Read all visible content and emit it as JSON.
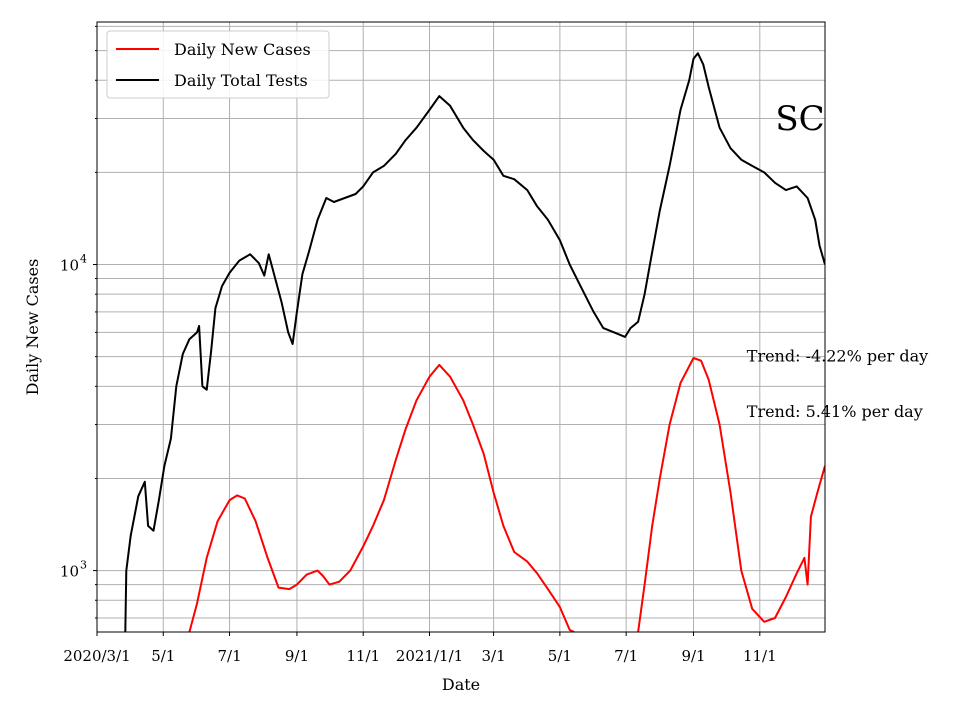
{
  "chart_data": {
    "type": "line",
    "title": "",
    "state_label": "SC",
    "xlabel": "Date",
    "ylabel": "Daily New Cases",
    "y_scale": "log",
    "ylim": [
      630,
      62000
    ],
    "xlim": [
      "2020-03-01",
      "2021-12-31"
    ],
    "grid": true,
    "legend_position": "top-left",
    "x_ticks": [
      {
        "date": "2020-03-01",
        "label": "2020/3/1"
      },
      {
        "date": "2020-05-01",
        "label": "5/1"
      },
      {
        "date": "2020-07-01",
        "label": "7/1"
      },
      {
        "date": "2020-09-01",
        "label": "9/1"
      },
      {
        "date": "2020-11-01",
        "label": "11/1"
      },
      {
        "date": "2021-01-01",
        "label": "2021/1/1"
      },
      {
        "date": "2021-03-01",
        "label": "3/1"
      },
      {
        "date": "2021-05-01",
        "label": "5/1"
      },
      {
        "date": "2021-07-01",
        "label": "7/1"
      },
      {
        "date": "2021-09-01",
        "label": "9/1"
      },
      {
        "date": "2021-11-01",
        "label": "11/1"
      }
    ],
    "y_ticks": [
      {
        "value": 1000,
        "base": "10",
        "exp": "3"
      },
      {
        "value": 10000,
        "base": "10",
        "exp": "4"
      }
    ],
    "annotations": [
      {
        "text": "Trend: -4.22% per day",
        "date": "2021-10-20",
        "value": 5000
      },
      {
        "text": "Trend: 5.41% per day",
        "date": "2021-10-20",
        "value": 3300
      }
    ],
    "series": [
      {
        "name": "Daily New Cases",
        "color": "#ff0000",
        "points": [
          [
            "2020-05-25",
            630
          ],
          [
            "2020-06-01",
            780
          ],
          [
            "2020-06-10",
            1100
          ],
          [
            "2020-06-20",
            1450
          ],
          [
            "2020-07-01",
            1700
          ],
          [
            "2020-07-08",
            1760
          ],
          [
            "2020-07-15",
            1720
          ],
          [
            "2020-07-25",
            1450
          ],
          [
            "2020-08-05",
            1100
          ],
          [
            "2020-08-15",
            880
          ],
          [
            "2020-08-25",
            870
          ],
          [
            "2020-09-01",
            900
          ],
          [
            "2020-09-10",
            970
          ],
          [
            "2020-09-20",
            1000
          ],
          [
            "2020-09-25",
            960
          ],
          [
            "2020-10-01",
            900
          ],
          [
            "2020-10-10",
            920
          ],
          [
            "2020-10-20",
            1000
          ],
          [
            "2020-11-01",
            1200
          ],
          [
            "2020-11-10",
            1400
          ],
          [
            "2020-11-20",
            1700
          ],
          [
            "2020-12-01",
            2300
          ],
          [
            "2020-12-10",
            2900
          ],
          [
            "2020-12-20",
            3600
          ],
          [
            "2021-01-01",
            4300
          ],
          [
            "2021-01-10",
            4700
          ],
          [
            "2021-01-20",
            4300
          ],
          [
            "2021-02-01",
            3600
          ],
          [
            "2021-02-10",
            3000
          ],
          [
            "2021-02-20",
            2400
          ],
          [
            "2021-03-01",
            1800
          ],
          [
            "2021-03-10",
            1400
          ],
          [
            "2021-03-20",
            1150
          ],
          [
            "2021-04-01",
            1070
          ],
          [
            "2021-04-10",
            980
          ],
          [
            "2021-04-20",
            870
          ],
          [
            "2021-05-01",
            760
          ],
          [
            "2021-05-10",
            640
          ],
          [
            "2021-05-14",
            630
          ]
        ]
      },
      {
        "name": "Daily New Cases",
        "color": "#ff0000",
        "points": [
          [
            "2021-07-12",
            630
          ],
          [
            "2021-07-18",
            900
          ],
          [
            "2021-07-25",
            1400
          ],
          [
            "2021-08-01",
            2000
          ],
          [
            "2021-08-10",
            3000
          ],
          [
            "2021-08-20",
            4100
          ],
          [
            "2021-09-01",
            4950
          ],
          [
            "2021-09-08",
            4850
          ],
          [
            "2021-09-15",
            4200
          ],
          [
            "2021-09-25",
            3000
          ],
          [
            "2021-10-05",
            1800
          ],
          [
            "2021-10-15",
            1000
          ],
          [
            "2021-10-25",
            750
          ],
          [
            "2021-11-05",
            680
          ],
          [
            "2021-11-15",
            700
          ],
          [
            "2021-11-25",
            820
          ],
          [
            "2021-12-05",
            980
          ],
          [
            "2021-12-12",
            1100
          ],
          [
            "2021-12-15",
            900
          ],
          [
            "2021-12-18",
            1500
          ],
          [
            "2021-12-24",
            1800
          ],
          [
            "2021-12-31",
            2200
          ]
        ]
      },
      {
        "name": "Daily Total Tests",
        "color": "#000000",
        "points": [
          [
            "2020-03-27",
            630
          ],
          [
            "2020-03-28",
            1000
          ],
          [
            "2020-04-01",
            1300
          ],
          [
            "2020-04-08",
            1750
          ],
          [
            "2020-04-14",
            1950
          ],
          [
            "2020-04-17",
            1400
          ],
          [
            "2020-04-22",
            1350
          ],
          [
            "2020-04-27",
            1700
          ],
          [
            "2020-05-02",
            2200
          ],
          [
            "2020-05-08",
            2700
          ],
          [
            "2020-05-13",
            4000
          ],
          [
            "2020-05-19",
            5100
          ],
          [
            "2020-05-25",
            5700
          ],
          [
            "2020-06-01",
            6000
          ],
          [
            "2020-06-03",
            6300
          ],
          [
            "2020-06-06",
            4000
          ],
          [
            "2020-06-10",
            3900
          ],
          [
            "2020-06-14",
            5200
          ],
          [
            "2020-06-18",
            7200
          ],
          [
            "2020-06-24",
            8500
          ],
          [
            "2020-07-01",
            9400
          ],
          [
            "2020-07-10",
            10300
          ],
          [
            "2020-07-20",
            10800
          ],
          [
            "2020-07-28",
            10100
          ],
          [
            "2020-08-02",
            9200
          ],
          [
            "2020-08-06",
            10800
          ],
          [
            "2020-08-12",
            9000
          ],
          [
            "2020-08-18",
            7500
          ],
          [
            "2020-08-24",
            6000
          ],
          [
            "2020-08-28",
            5500
          ],
          [
            "2020-09-01",
            7000
          ],
          [
            "2020-09-06",
            9300
          ],
          [
            "2020-09-12",
            11000
          ],
          [
            "2020-09-20",
            14000
          ],
          [
            "2020-09-28",
            16500
          ],
          [
            "2020-10-05",
            16000
          ],
          [
            "2020-10-15",
            16500
          ],
          [
            "2020-10-25",
            17000
          ],
          [
            "2020-11-01",
            18000
          ],
          [
            "2020-11-10",
            20000
          ],
          [
            "2020-11-20",
            21000
          ],
          [
            "2020-12-01",
            23000
          ],
          [
            "2020-12-10",
            25500
          ],
          [
            "2020-12-20",
            28000
          ],
          [
            "2021-01-01",
            32000
          ],
          [
            "2021-01-10",
            35500
          ],
          [
            "2021-01-20",
            33000
          ],
          [
            "2021-02-01",
            28000
          ],
          [
            "2021-02-10",
            25500
          ],
          [
            "2021-02-20",
            23500
          ],
          [
            "2021-03-01",
            22000
          ],
          [
            "2021-03-10",
            19500
          ],
          [
            "2021-03-20",
            19000
          ],
          [
            "2021-04-01",
            17500
          ],
          [
            "2021-04-10",
            15500
          ],
          [
            "2021-04-20",
            14000
          ],
          [
            "2021-05-01",
            12000
          ],
          [
            "2021-05-10",
            10000
          ],
          [
            "2021-05-20",
            8500
          ],
          [
            "2021-06-01",
            7000
          ],
          [
            "2021-06-10",
            6200
          ],
          [
            "2021-06-20",
            6000
          ],
          [
            "2021-06-30",
            5800
          ],
          [
            "2021-07-05",
            6200
          ],
          [
            "2021-07-12",
            6500
          ],
          [
            "2021-07-18",
            8000
          ],
          [
            "2021-07-25",
            11000
          ],
          [
            "2021-08-01",
            15000
          ],
          [
            "2021-08-10",
            21000
          ],
          [
            "2021-08-20",
            32000
          ],
          [
            "2021-08-28",
            40000
          ],
          [
            "2021-09-01",
            47000
          ],
          [
            "2021-09-05",
            49000
          ],
          [
            "2021-09-10",
            45000
          ],
          [
            "2021-09-15",
            38000
          ],
          [
            "2021-09-25",
            28000
          ],
          [
            "2021-10-05",
            24000
          ],
          [
            "2021-10-15",
            22000
          ],
          [
            "2021-10-25",
            21000
          ],
          [
            "2021-11-05",
            20000
          ],
          [
            "2021-11-15",
            18500
          ],
          [
            "2021-11-25",
            17500
          ],
          [
            "2021-12-05",
            18000
          ],
          [
            "2021-12-15",
            16500
          ],
          [
            "2021-12-22",
            14000
          ],
          [
            "2021-12-26",
            11500
          ],
          [
            "2021-12-31",
            10000
          ]
        ]
      }
    ],
    "legend": [
      {
        "label": "Daily New Cases",
        "color": "#ff0000"
      },
      {
        "label": "Daily Total Tests",
        "color": "#000000"
      }
    ]
  }
}
